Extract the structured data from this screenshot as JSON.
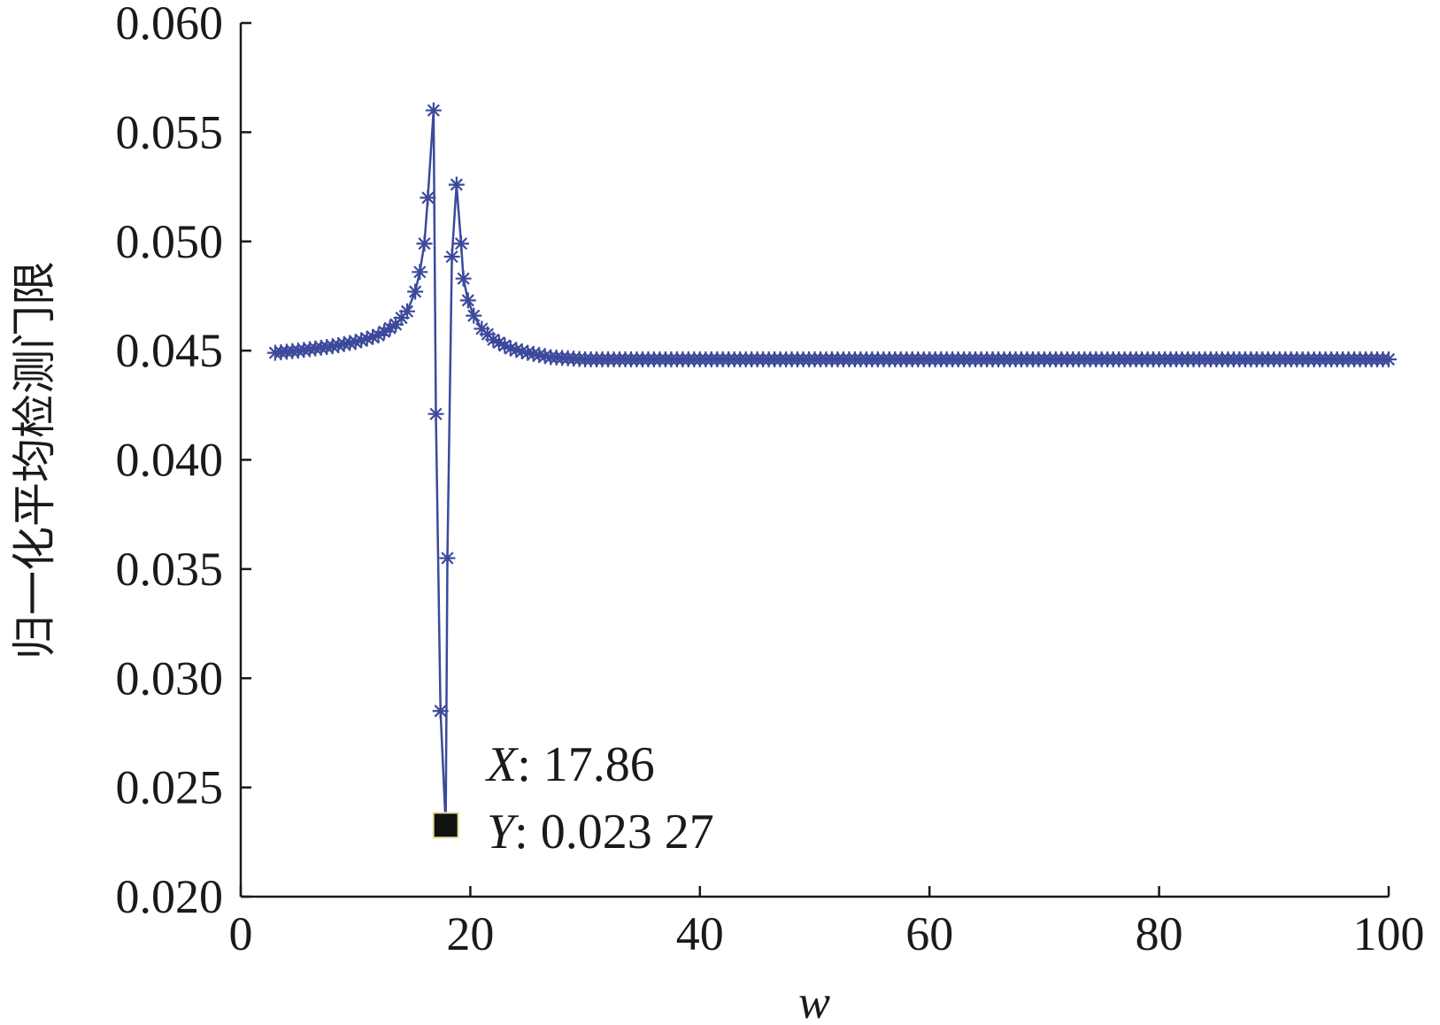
{
  "chart_data": {
    "type": "line",
    "title": "",
    "xlabel": "w",
    "ylabel": "归一化平均检测门限",
    "xlim": [
      0,
      100
    ],
    "ylim": [
      0.02,
      0.06
    ],
    "grid": false,
    "x_ticks": [
      {
        "value": 0,
        "label": "0"
      },
      {
        "value": 20,
        "label": "20"
      },
      {
        "value": 40,
        "label": "40"
      },
      {
        "value": 60,
        "label": "60"
      },
      {
        "value": 80,
        "label": "80"
      },
      {
        "value": 100,
        "label": "100"
      }
    ],
    "y_ticks": [
      {
        "value": 0.02,
        "label": "0.020"
      },
      {
        "value": 0.025,
        "label": "0.025"
      },
      {
        "value": 0.03,
        "label": "0.030"
      },
      {
        "value": 0.035,
        "label": "0.035"
      },
      {
        "value": 0.04,
        "label": "0.040"
      },
      {
        "value": 0.045,
        "label": "0.045"
      },
      {
        "value": 0.05,
        "label": "0.050"
      },
      {
        "value": 0.055,
        "label": "0.055"
      },
      {
        "value": 0.06,
        "label": "0.060"
      }
    ],
    "series": [
      {
        "color": "#3c4a9b",
        "marker": "asterisk",
        "baseline": 0.0446,
        "x_range": [
          3,
          100
        ],
        "step": 0.5,
        "points": [
          {
            "x": 3,
            "y": 0.0449
          },
          {
            "x": 5,
            "y": 0.045
          },
          {
            "x": 8,
            "y": 0.0452
          },
          {
            "x": 10,
            "y": 0.0454
          },
          {
            "x": 12,
            "y": 0.0457
          },
          {
            "x": 13.5,
            "y": 0.0462
          },
          {
            "x": 14.5,
            "y": 0.0468
          },
          {
            "x": 15.2,
            "y": 0.0477
          },
          {
            "x": 15.6,
            "y": 0.0486
          },
          {
            "x": 16.0,
            "y": 0.0499
          },
          {
            "x": 16.3,
            "y": 0.052
          },
          {
            "x": 16.8,
            "y": 0.056
          },
          {
            "x": 17.0,
            "y": 0.0421
          },
          {
            "x": 17.4,
            "y": 0.0285
          },
          {
            "x": 17.86,
            "y": 0.02327
          },
          {
            "x": 18.0,
            "y": 0.0355
          },
          {
            "x": 18.4,
            "y": 0.0493
          },
          {
            "x": 18.8,
            "y": 0.0526
          },
          {
            "x": 19.2,
            "y": 0.0499
          },
          {
            "x": 19.4,
            "y": 0.0483
          },
          {
            "x": 19.8,
            "y": 0.0473
          },
          {
            "x": 20.3,
            "y": 0.0466
          },
          {
            "x": 21.0,
            "y": 0.046
          },
          {
            "x": 22.0,
            "y": 0.0455
          },
          {
            "x": 23.5,
            "y": 0.0451
          },
          {
            "x": 25.0,
            "y": 0.0449
          },
          {
            "x": 27.0,
            "y": 0.0447
          },
          {
            "x": 30.0,
            "y": 0.0446
          },
          {
            "x": 100,
            "y": 0.0446
          }
        ]
      }
    ],
    "annotation": {
      "x": 17.86,
      "y": 0.02327,
      "x_prefix": "X",
      "y_prefix": "Y",
      "x_text": ": 17.86",
      "y_text": ": 0.023 27",
      "marker_color": "#111111"
    }
  }
}
